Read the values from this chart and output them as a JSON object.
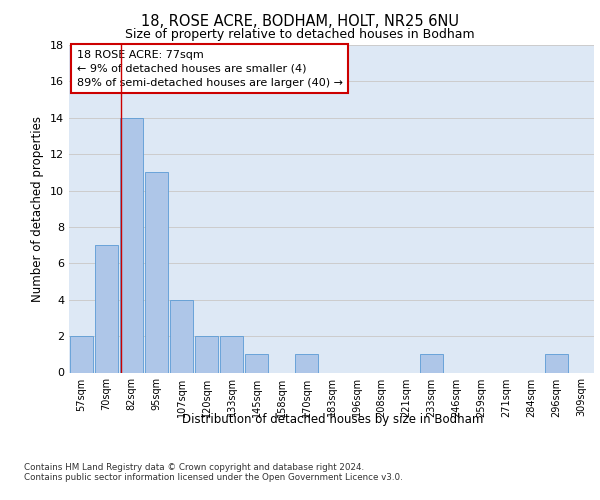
{
  "title1": "18, ROSE ACRE, BODHAM, HOLT, NR25 6NU",
  "title2": "Size of property relative to detached houses in Bodham",
  "xlabel": "Distribution of detached houses by size in Bodham",
  "ylabel": "Number of detached properties",
  "footnote": "Contains HM Land Registry data © Crown copyright and database right 2024.\nContains public sector information licensed under the Open Government Licence v3.0.",
  "categories": [
    "57sqm",
    "70sqm",
    "82sqm",
    "95sqm",
    "107sqm",
    "120sqm",
    "133sqm",
    "145sqm",
    "158sqm",
    "170sqm",
    "183sqm",
    "196sqm",
    "208sqm",
    "221sqm",
    "233sqm",
    "246sqm",
    "259sqm",
    "271sqm",
    "284sqm",
    "296sqm",
    "309sqm"
  ],
  "values": [
    2,
    7,
    14,
    11,
    4,
    2,
    2,
    1,
    0,
    1,
    0,
    0,
    0,
    0,
    1,
    0,
    0,
    0,
    0,
    1,
    0
  ],
  "bar_color": "#aec6e8",
  "bar_edge_color": "#5b9bd5",
  "annotation_box_text": "18 ROSE ACRE: 77sqm\n← 9% of detached houses are smaller (4)\n89% of semi-detached houses are larger (40) →",
  "annotation_box_color": "#ffffff",
  "annotation_box_edge_color": "#cc0000",
  "vline_color": "#cc0000",
  "vline_xindex": 1.583,
  "ylim": [
    0,
    18
  ],
  "yticks": [
    0,
    2,
    4,
    6,
    8,
    10,
    12,
    14,
    16,
    18
  ],
  "grid_color": "#cccccc",
  "plot_bg_color": "#dde8f5"
}
